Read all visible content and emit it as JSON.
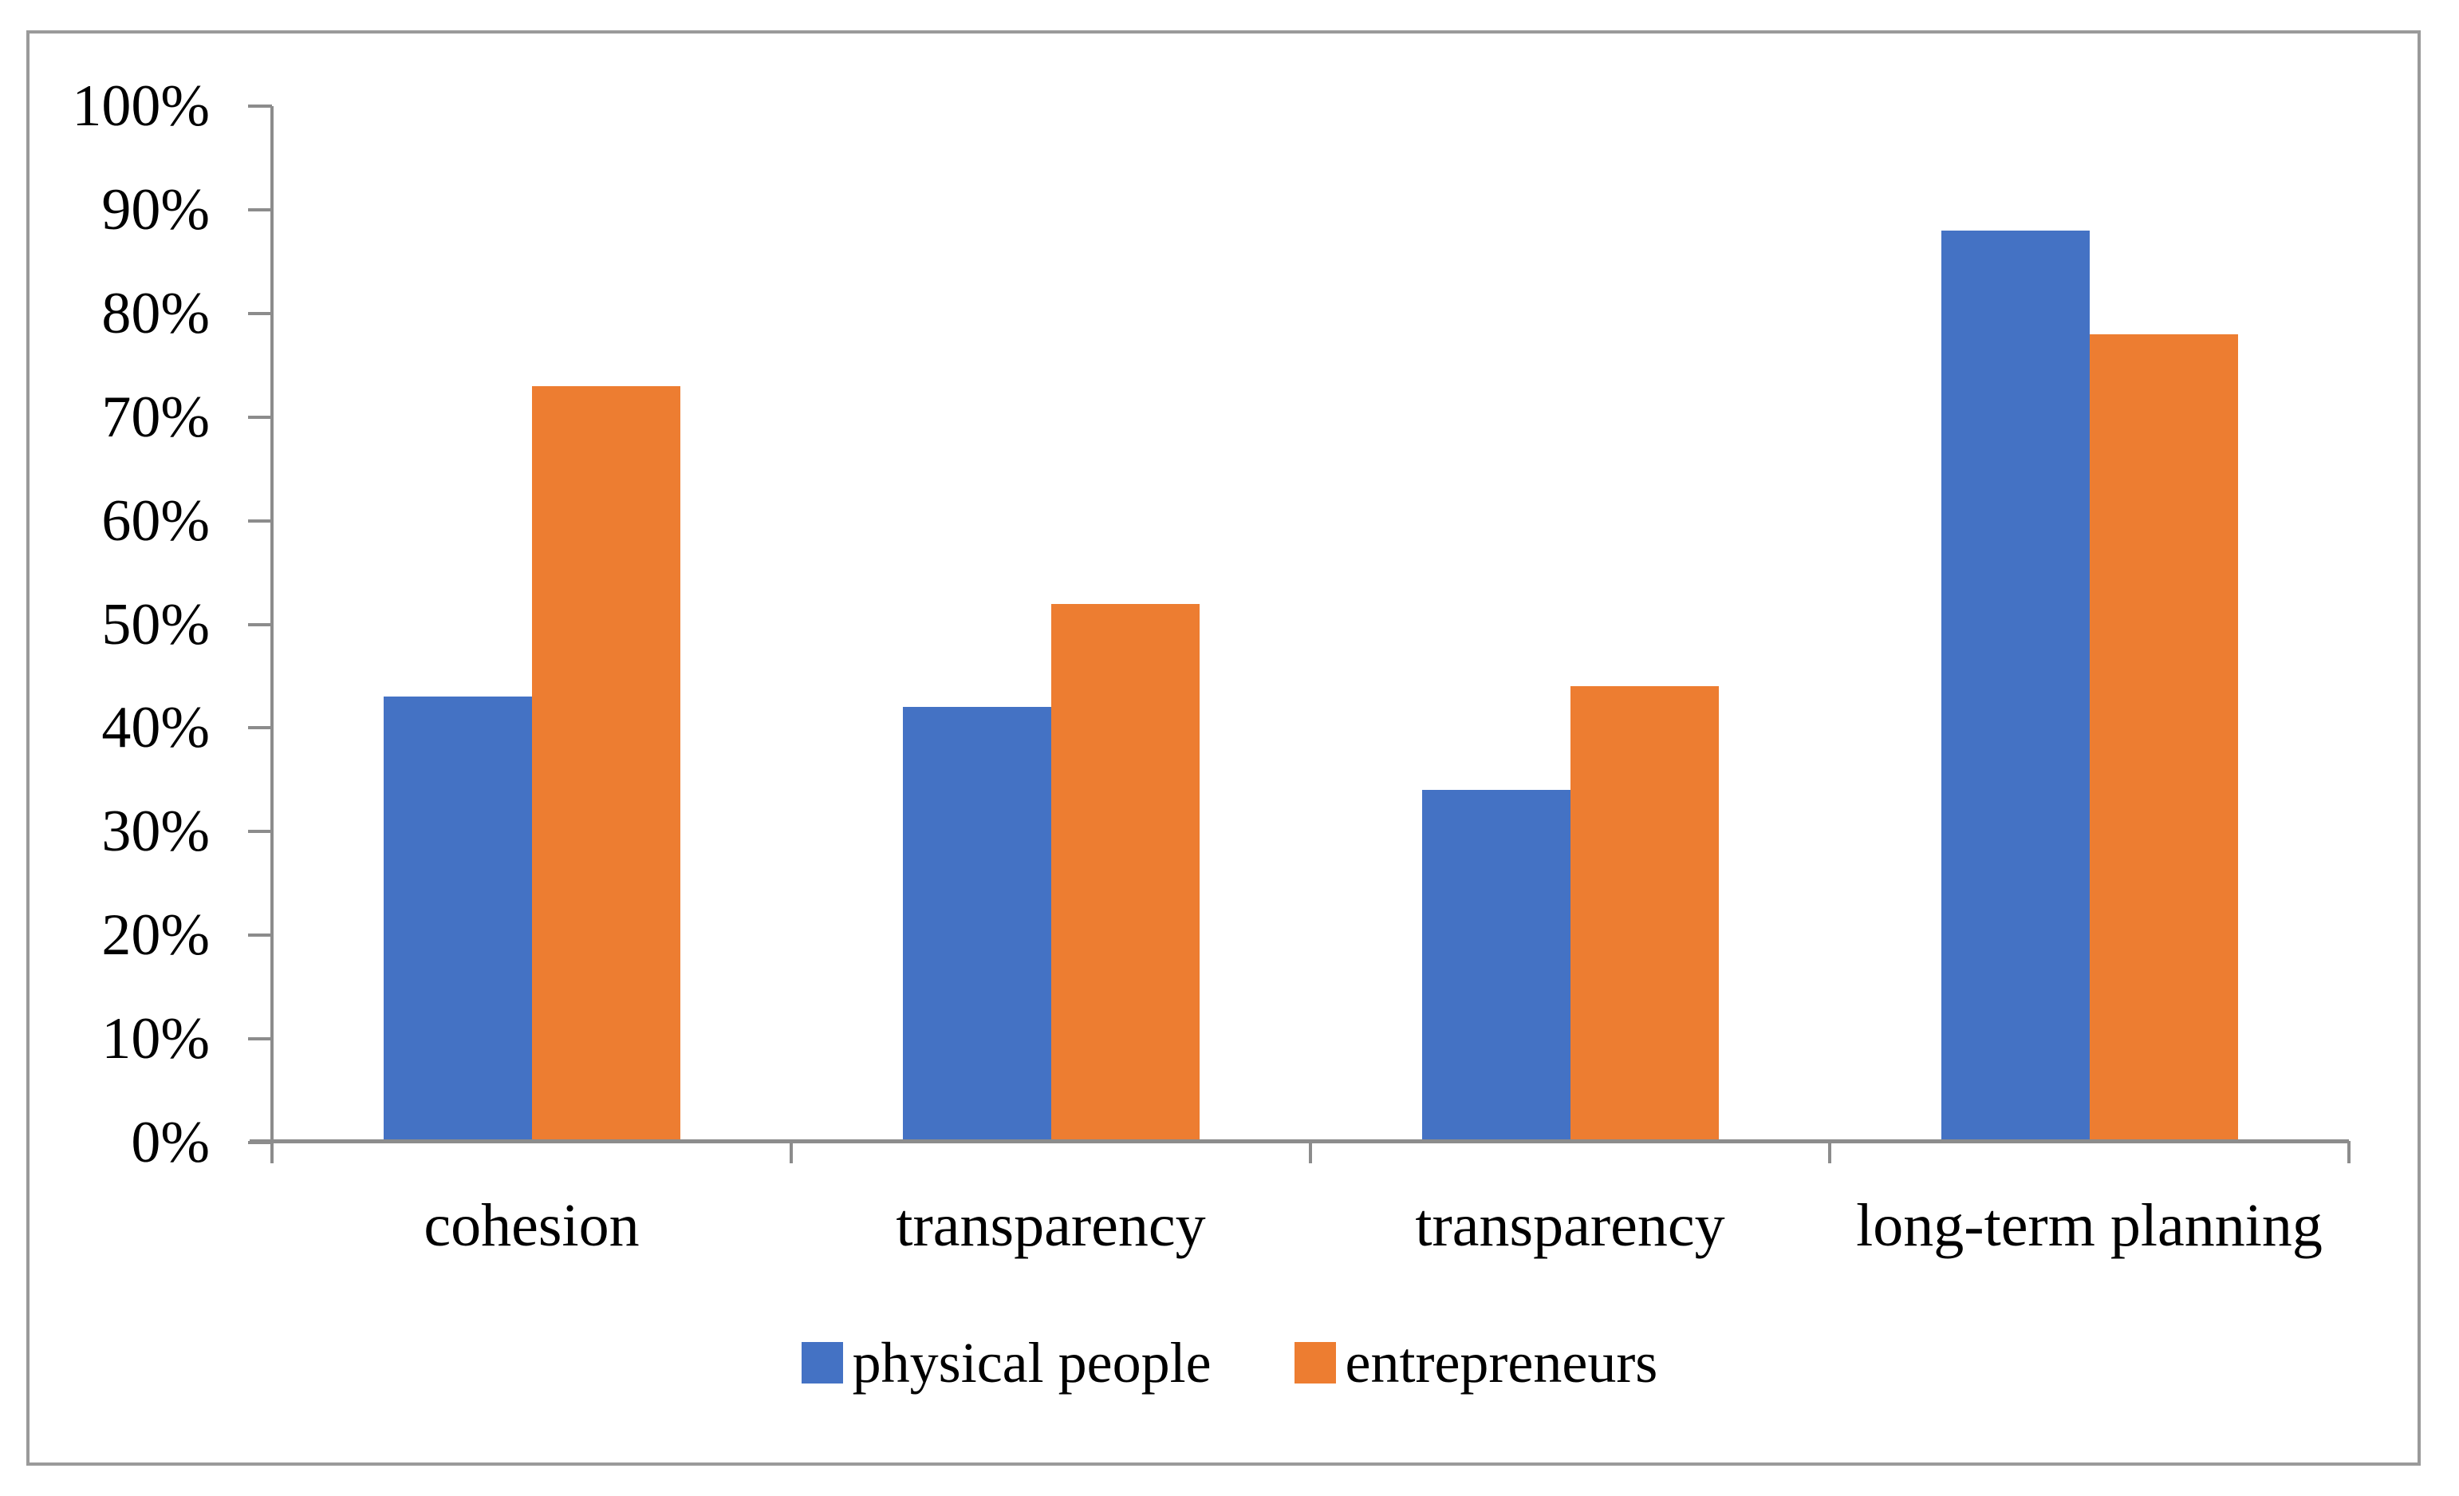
{
  "chart_data": {
    "type": "bar",
    "title": "",
    "xlabel": "",
    "ylabel": "",
    "categories": [
      "cohesion",
      "transparency",
      "transparency",
      "long-term planning"
    ],
    "series": [
      {
        "name": "physical people",
        "color": "#4472c4",
        "values": [
          43,
          42,
          34,
          88
        ]
      },
      {
        "name": "entrepreneurs",
        "color": "#ed7d31",
        "values": [
          73,
          52,
          44,
          78
        ]
      }
    ],
    "ylim": [
      0,
      100
    ],
    "ytick_step": 10,
    "ytick_labels": [
      "0%",
      "10%",
      "20%",
      "30%",
      "40%",
      "50%",
      "60%",
      "70%",
      "80%",
      "90%",
      "100%"
    ],
    "grid": false,
    "legend_position": "bottom",
    "axis_color": "#8c8c8c",
    "frame_color": "#9a9a9a"
  }
}
